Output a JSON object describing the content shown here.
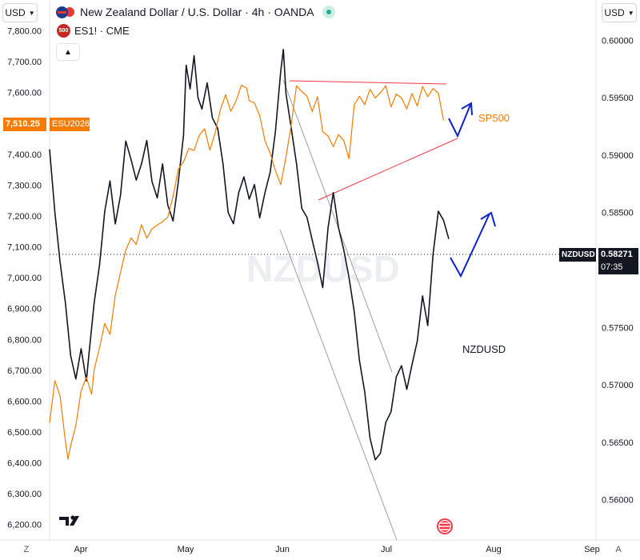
{
  "header": {
    "title": "New Zealand Dollar / U.S. Dollar · 4h · OANDA",
    "sub_symbol": "ES1! · CME",
    "sub_badge": "500",
    "left_currency": "USD",
    "right_currency": "USD"
  },
  "colors": {
    "nzdusd": "#131722",
    "sp500": "#f57c00",
    "resistance": "#f23645",
    "channel": "#9e9e9e",
    "arrows": "#0d22c7",
    "right_tag_bg": "#131722",
    "left_tag_bg": "#f57c00"
  },
  "watermark": "NZDUSD",
  "annotations": {
    "sp500_label": "SP500",
    "nzdusd_label": "NZDUSD"
  },
  "price_tags": {
    "right_symbol": "NZDUSD",
    "right_value": "0.58271",
    "right_countdown": "07:35",
    "left_value": "7,510.25",
    "left_symbol": "ESU2026"
  },
  "corner_buttons": {
    "left": "Z",
    "right": "A"
  },
  "chart_data": {
    "type": "line",
    "x_ticks": [
      "Apr",
      "May",
      "Jun",
      "Jul",
      "Aug",
      "Sep"
    ],
    "left_axis": {
      "label": "USD",
      "ylim": [
        6150,
        7900
      ],
      "ticks": [
        "7,800.00",
        "7,700.00",
        "7,600.00",
        "7,500.00",
        "7,400.00",
        "7,300.00",
        "7,200.00",
        "7,100.00",
        "7,000.00",
        "6,900.00",
        "6,800.00",
        "6,700.00",
        "6,600.00",
        "6,500.00",
        "6,400.00",
        "6,300.00",
        "6,200.00"
      ]
    },
    "right_axis": {
      "label": "USD",
      "ylim": [
        0.5565,
        0.6035
      ],
      "ticks": [
        "0.60000",
        "0.59500",
        "0.59000",
        "0.58500",
        "0.58000",
        "0.57500",
        "0.57000",
        "0.56500",
        "0.56000"
      ]
    },
    "series": [
      {
        "name": "NZDUSD",
        "axis": "right",
        "points": [
          [
            0,
            0.5905
          ],
          [
            4,
            0.5852
          ],
          [
            8,
            0.5805
          ],
          [
            12,
            0.5772
          ],
          [
            16,
            0.5725
          ],
          [
            20,
            0.5705
          ],
          [
            24,
            0.5732
          ],
          [
            28,
            0.5702
          ],
          [
            30,
            0.5722
          ],
          [
            34,
            0.5768
          ],
          [
            38,
            0.5802
          ],
          [
            42,
            0.5848
          ],
          [
            46,
            0.5872
          ],
          [
            50,
            0.5838
          ],
          [
            54,
            0.5862
          ],
          [
            58,
            0.5912
          ],
          [
            62,
            0.5898
          ],
          [
            66,
            0.5878
          ],
          [
            70,
            0.5893
          ],
          [
            74,
            0.5912
          ],
          [
            78,
            0.5878
          ],
          [
            82,
            0.5863
          ],
          [
            86,
            0.5893
          ],
          [
            90,
            0.5852
          ],
          [
            94,
            0.5837
          ],
          [
            98,
            0.5872
          ],
          [
            102,
            0.5913
          ],
          [
            104,
            0.5972
          ],
          [
            107,
            0.5952
          ],
          [
            110,
            0.5982
          ],
          [
            113,
            0.5952
          ],
          [
            116,
            0.5941
          ],
          [
            120,
            0.5962
          ],
          [
            124,
            0.5932
          ],
          [
            128,
            0.5922
          ],
          [
            132,
            0.5893
          ],
          [
            136,
            0.5852
          ],
          [
            140,
            0.5842
          ],
          [
            144,
            0.5863
          ],
          [
            148,
            0.5878
          ],
          [
            152,
            0.5858
          ],
          [
            156,
            0.5872
          ],
          [
            160,
            0.5841
          ],
          [
            164,
            0.5862
          ],
          [
            168,
            0.5882
          ],
          [
            172,
            0.5922
          ],
          [
            176,
            0.5972
          ],
          [
            178,
            0.5992
          ],
          [
            180,
            0.5952
          ],
          [
            184,
            0.5922
          ],
          [
            188,
            0.5892
          ],
          [
            192,
            0.5852
          ],
          [
            196,
            0.5843
          ],
          [
            200,
            0.5822
          ],
          [
            204,
            0.5802
          ],
          [
            208,
            0.5782
          ],
          [
            212,
            0.5832
          ],
          [
            216,
            0.5862
          ],
          [
            220,
            0.5832
          ],
          [
            224,
            0.5812
          ],
          [
            228,
            0.5792
          ],
          [
            232,
            0.5762
          ],
          [
            236,
            0.5722
          ],
          [
            240,
            0.5692
          ],
          [
            244,
            0.5652
          ],
          [
            248,
            0.5633
          ],
          [
            252,
            0.5641
          ],
          [
            256,
            0.5662
          ],
          [
            260,
            0.5672
          ],
          [
            264,
            0.5702
          ],
          [
            268,
            0.5712
          ],
          [
            272,
            0.5692
          ],
          [
            276,
            0.5712
          ],
          [
            280,
            0.5732
          ],
          [
            284,
            0.5772
          ],
          [
            288,
            0.5752
          ],
          [
            292,
            0.5812
          ],
          [
            296,
            0.5852
          ],
          [
            300,
            0.5842
          ],
          [
            304,
            0.5827
          ]
        ]
      },
      {
        "name": "SP500",
        "axis": "left",
        "points": [
          [
            0,
            6530
          ],
          [
            4,
            6650
          ],
          [
            8,
            6600
          ],
          [
            12,
            6450
          ],
          [
            14,
            6390
          ],
          [
            16,
            6440
          ],
          [
            20,
            6500
          ],
          [
            24,
            6620
          ],
          [
            28,
            6680
          ],
          [
            32,
            6630
          ],
          [
            34,
            6700
          ],
          [
            38,
            6780
          ],
          [
            42,
            6850
          ],
          [
            46,
            6820
          ],
          [
            50,
            6950
          ],
          [
            54,
            7000
          ],
          [
            58,
            7080
          ],
          [
            62,
            7120
          ],
          [
            66,
            7100
          ],
          [
            70,
            7150
          ],
          [
            74,
            7120
          ],
          [
            78,
            7140
          ],
          [
            82,
            7160
          ],
          [
            86,
            7180
          ],
          [
            90,
            7200
          ],
          [
            94,
            7270
          ],
          [
            98,
            7350
          ],
          [
            102,
            7380
          ],
          [
            106,
            7420
          ],
          [
            110,
            7420
          ],
          [
            114,
            7450
          ],
          [
            118,
            7460
          ],
          [
            122,
            7400
          ],
          [
            126,
            7460
          ],
          [
            130,
            7530
          ],
          [
            134,
            7580
          ],
          [
            138,
            7520
          ],
          [
            142,
            7560
          ],
          [
            146,
            7620
          ],
          [
            150,
            7620
          ],
          [
            152,
            7570
          ],
          [
            156,
            7560
          ],
          [
            160,
            7520
          ],
          [
            164,
            7440
          ],
          [
            168,
            7400
          ],
          [
            172,
            7330
          ],
          [
            176,
            7280
          ],
          [
            180,
            7370
          ],
          [
            184,
            7480
          ],
          [
            188,
            7600
          ],
          [
            192,
            7590
          ],
          [
            196,
            7580
          ],
          [
            200,
            7520
          ],
          [
            204,
            7580
          ],
          [
            208,
            7480
          ],
          [
            212,
            7460
          ],
          [
            216,
            7420
          ],
          [
            220,
            7460
          ],
          [
            224,
            7440
          ],
          [
            228,
            7380
          ],
          [
            232,
            7540
          ],
          [
            236,
            7580
          ],
          [
            240,
            7540
          ],
          [
            244,
            7600
          ],
          [
            248,
            7560
          ],
          [
            252,
            7580
          ],
          [
            256,
            7600
          ],
          [
            260,
            7560
          ],
          [
            264,
            7600
          ],
          [
            268,
            7580
          ],
          [
            272,
            7540
          ],
          [
            276,
            7600
          ],
          [
            280,
            7560
          ],
          [
            284,
            7620
          ],
          [
            288,
            7580
          ],
          [
            292,
            7600
          ],
          [
            296,
            7590
          ],
          [
            300,
            7510
          ]
        ]
      }
    ],
    "grid": false
  }
}
